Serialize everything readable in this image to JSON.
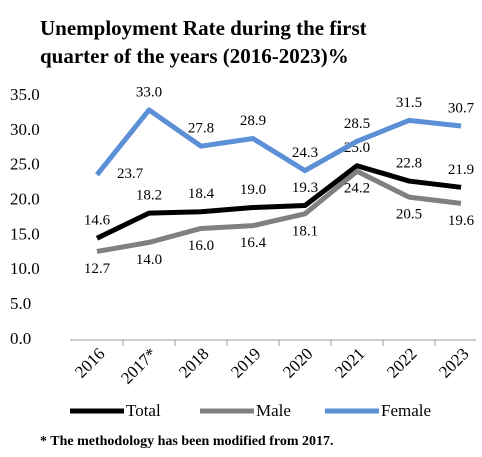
{
  "chart_data": {
    "type": "line",
    "title": [
      "Unemployment Rate during the first",
      "quarter of the years (2016-2023)%"
    ],
    "categories": [
      "2016",
      "2017*",
      "2018",
      "2019",
      "2020",
      "2021",
      "2022",
      "2023"
    ],
    "series": [
      {
        "name": "Total",
        "color": "#000000",
        "values": [
          14.6,
          18.2,
          18.4,
          19.0,
          19.3,
          25.0,
          22.8,
          21.9
        ],
        "value_labels": [
          "14.6",
          "18.2",
          "18.4",
          "19.0",
          "19.3",
          "25.0",
          "22.8",
          "21.9"
        ]
      },
      {
        "name": "Male",
        "color": "#808080",
        "values": [
          12.7,
          14.0,
          16.0,
          16.4,
          18.1,
          24.2,
          20.5,
          19.6
        ],
        "value_labels": [
          "12.7",
          "14.0",
          "16.0",
          "16.4",
          "18.1",
          "24.2",
          "20.5",
          "19.6"
        ]
      },
      {
        "name": "Female",
        "color": "#5b8fd6",
        "values": [
          23.7,
          33.0,
          27.8,
          28.9,
          24.3,
          28.5,
          31.5,
          30.7
        ],
        "value_labels": [
          "23.7",
          "33.0",
          "27.8",
          "28.9",
          "24.3",
          "28.5",
          "31.5",
          "30.7"
        ]
      }
    ],
    "ylim": [
      0,
      35
    ],
    "yticks": [
      {
        "value": 0,
        "label": "0.0"
      },
      {
        "value": 5,
        "label": "5.0"
      },
      {
        "value": 10,
        "label": "10.0"
      },
      {
        "value": 15,
        "label": "15.0"
      },
      {
        "value": 20,
        "label": "20.0"
      },
      {
        "value": 25,
        "label": "25.0"
      },
      {
        "value": 30,
        "label": "30.0"
      },
      {
        "value": 35,
        "label": "35.0"
      }
    ],
    "legend": "bottom",
    "annotation": "* The methodology has been modified from 2017."
  }
}
